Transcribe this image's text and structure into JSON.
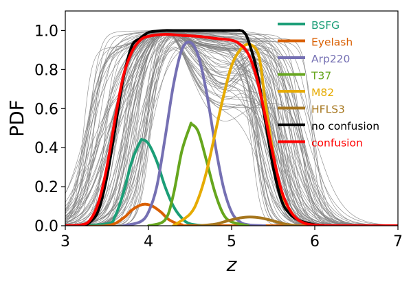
{
  "chart_data": {
    "type": "line",
    "xlabel": "z",
    "ylabel": "PDF",
    "xlim": [
      3,
      7
    ],
    "ylim": [
      0,
      1.1
    ],
    "xticks": [
      "3",
      "4",
      "5",
      "6",
      "7"
    ],
    "yticks": [
      "0.0",
      "0.2",
      "0.4",
      "0.6",
      "0.8",
      "1.0"
    ],
    "legend_position": "top-right",
    "background_curves": {
      "color": "#808080",
      "description_count": 80,
      "count_note": "many individual thin grey curves"
    },
    "series": [
      {
        "name": "BSFG",
        "color": "#1b9e77",
        "x": [
          3.0,
          3.5,
          3.6,
          3.7,
          3.8,
          3.9,
          3.93,
          4.0,
          4.1,
          4.2,
          4.3,
          4.4,
          4.5,
          4.7,
          5.0
        ],
        "y": [
          0.0,
          0.01,
          0.05,
          0.17,
          0.33,
          0.43,
          0.44,
          0.42,
          0.33,
          0.2,
          0.1,
          0.04,
          0.01,
          0.0,
          0.0
        ]
      },
      {
        "name": "Eyelash",
        "color": "#d95f02",
        "x": [
          3.0,
          3.5,
          3.7,
          3.8,
          3.9,
          3.97,
          4.05,
          4.15,
          4.25,
          4.4,
          4.6,
          7.0
        ],
        "y": [
          0.0,
          0.0,
          0.04,
          0.08,
          0.105,
          0.11,
          0.1,
          0.07,
          0.03,
          0.005,
          0.0,
          0.0
        ]
      },
      {
        "name": "Arp220",
        "color": "#7570b3",
        "x": [
          3.7,
          3.9,
          4.0,
          4.1,
          4.2,
          4.3,
          4.4,
          4.5,
          4.6,
          4.7,
          4.8,
          4.9,
          5.0,
          5.1,
          5.2,
          5.4
        ],
        "y": [
          0.0,
          0.02,
          0.07,
          0.2,
          0.45,
          0.72,
          0.9,
          0.94,
          0.87,
          0.68,
          0.42,
          0.2,
          0.07,
          0.02,
          0.005,
          0.0
        ]
      },
      {
        "name": "T37",
        "color": "#66a61e",
        "x": [
          4.0,
          4.2,
          4.3,
          4.4,
          4.5,
          4.52,
          4.6,
          4.7,
          4.8,
          4.9,
          5.0,
          5.2
        ],
        "y": [
          0.0,
          0.03,
          0.16,
          0.38,
          0.51,
          0.52,
          0.48,
          0.33,
          0.17,
          0.06,
          0.02,
          0.0
        ]
      },
      {
        "name": "M82",
        "color": "#e6ab02",
        "x": [
          4.3,
          4.5,
          4.6,
          4.7,
          4.8,
          4.9,
          5.0,
          5.1,
          5.2,
          5.3,
          5.35,
          5.4,
          5.5,
          5.6,
          5.75,
          5.9,
          6.1
        ],
        "y": [
          0.0,
          0.06,
          0.14,
          0.28,
          0.47,
          0.66,
          0.82,
          0.9,
          0.93,
          0.9,
          0.82,
          0.65,
          0.37,
          0.17,
          0.05,
          0.01,
          0.0
        ]
      },
      {
        "name": "HFLS3",
        "color": "#a6761d",
        "x": [
          4.6,
          4.8,
          4.95,
          5.1,
          5.22,
          5.35,
          5.5,
          5.65,
          5.8
        ],
        "y": [
          0.0,
          0.008,
          0.025,
          0.04,
          0.045,
          0.04,
          0.025,
          0.008,
          0.0
        ]
      },
      {
        "name": "no confusion",
        "color": "#000000",
        "x": [
          3.0,
          3.2,
          3.3,
          3.4,
          3.5,
          3.6,
          3.7,
          3.8,
          3.9,
          4.0,
          4.1,
          4.2,
          4.3,
          5.0,
          5.1,
          5.15,
          5.2,
          5.3,
          5.4,
          5.5,
          5.6,
          5.7,
          5.8,
          5.9,
          6.0,
          6.1,
          6.2,
          7.0
        ],
        "y": [
          0.0,
          0.0,
          0.02,
          0.08,
          0.25,
          0.5,
          0.76,
          0.92,
          0.96,
          0.99,
          0.997,
          1.0,
          1.0,
          1.0,
          1.0,
          0.99,
          0.95,
          0.8,
          0.55,
          0.3,
          0.13,
          0.06,
          0.03,
          0.015,
          0.005,
          0.002,
          0.0,
          0.0
        ]
      },
      {
        "name": "confusion",
        "color": "#ff0000",
        "x": [
          3.0,
          3.2,
          3.3,
          3.4,
          3.5,
          3.6,
          3.7,
          3.8,
          3.9,
          4.0,
          4.2,
          4.4,
          4.6,
          4.8,
          5.0,
          5.1,
          5.2,
          5.3,
          5.4,
          5.5,
          5.6,
          5.7,
          5.8,
          5.9,
          6.0,
          6.2,
          7.0
        ],
        "y": [
          0.0,
          0.005,
          0.03,
          0.12,
          0.3,
          0.55,
          0.77,
          0.89,
          0.95,
          0.97,
          0.98,
          0.975,
          0.97,
          0.96,
          0.95,
          0.93,
          0.88,
          0.76,
          0.57,
          0.36,
          0.18,
          0.08,
          0.03,
          0.01,
          0.004,
          0.0,
          0.0
        ]
      }
    ]
  }
}
